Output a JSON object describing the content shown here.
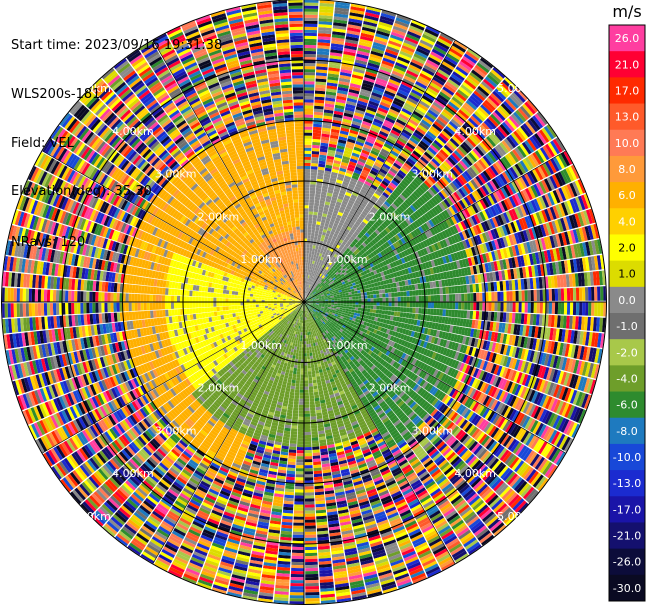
{
  "info": {
    "start_time": "Start time: 2023/09/16 19:31:38",
    "instrument": "WLS200s-181",
    "field": "Field: VEL",
    "elevation": "Elevation(deg): 35.30",
    "nrays": "NRays: 120"
  },
  "chart_data": {
    "type": "heatmap",
    "projection": "polar (PPI scan)",
    "field": "VEL",
    "range_rings": [
      "1.00km",
      "2.00km",
      "3.00km",
      "4.00km",
      "5.00km"
    ],
    "colorbar": {
      "unit": "m/s",
      "ticks": [
        "26.0",
        "21.0",
        "17.0",
        "13.0",
        "10.0",
        "8.0",
        "6.0",
        "4.0",
        "2.0",
        "1.0",
        "0.0",
        "-1.0",
        "-2.0",
        "-4.0",
        "-6.0",
        "-8.0",
        "-10.0",
        "-13.0",
        "-17.0",
        "-21.0",
        "-26.0",
        "-30.0"
      ],
      "colors": [
        "#ff3ea0",
        "#ff0033",
        "#ff2a00",
        "#ff5a2a",
        "#ff7a55",
        "#ff9a3a",
        "#ffb000",
        "#ffd000",
        "#ffff00",
        "#dcdc00",
        "#8a8a8a",
        "#6f6f6f",
        "#a8c84a",
        "#6e9e2a",
        "#2e8b2e",
        "#1e7abf",
        "#1848d8",
        "#1b2bd0",
        "#1a14a8",
        "#14106e",
        "#0c0c3a",
        "#0a0a22"
      ]
    },
    "near_field_regions": [
      {
        "azimuth_from_deg": 200,
        "azimuth_to_deg": 360,
        "range_to_km": 3.0,
        "velocity_ms": 6.0
      },
      {
        "azimuth_from_deg": 320,
        "azimuth_to_deg": 360,
        "range_to_km": 1.2,
        "velocity_ms": 8.0
      },
      {
        "azimuth_from_deg": 230,
        "azimuth_to_deg": 290,
        "range_to_km": 2.3,
        "velocity_ms": 2.0
      },
      {
        "azimuth_from_deg": 0,
        "azimuth_to_deg": 40,
        "range_to_km": 2.2,
        "velocity_ms": 0.0
      },
      {
        "azimuth_from_deg": 40,
        "azimuth_to_deg": 150,
        "range_to_km": 2.8,
        "velocity_ms": -6.0
      },
      {
        "azimuth_from_deg": 150,
        "azimuth_to_deg": 230,
        "range_to_km": 2.4,
        "velocity_ms": -4.0
      }
    ],
    "outer_region": "noise (random velocities) beyond ~3.0 km"
  }
}
